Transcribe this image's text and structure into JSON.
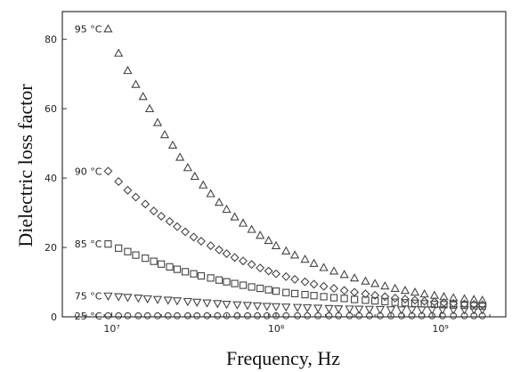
{
  "chart_data": {
    "type": "scatter",
    "title": "",
    "xlabel": "Frequency, Hz",
    "ylabel": "Dielectric loss factor",
    "xscale": "log",
    "xlim": [
      5000000,
      2500000000
    ],
    "ylim": [
      0,
      88
    ],
    "grid": false,
    "legend": "inline labels at left of each series",
    "x_ticks": [
      {
        "value": 10000000,
        "label": "10⁷"
      },
      {
        "value": 100000000,
        "label": "10⁸"
      },
      {
        "value": 1000000000,
        "label": "10⁹"
      }
    ],
    "y_ticks": [
      0,
      20,
      40,
      60,
      80
    ],
    "colors": {
      "marker": "#444444",
      "axis": "#333333"
    },
    "series": [
      {
        "name": "95 °C",
        "marker": "triangle",
        "x": [
          9500000,
          11000000,
          12500000,
          14000000,
          15500000,
          17000000,
          19000000,
          21000000,
          23500000,
          26000000,
          29000000,
          32000000,
          36000000,
          40000000,
          45000000,
          50000000,
          56000000,
          63000000,
          71000000,
          80000000,
          90000000,
          100000000,
          115000000,
          130000000,
          150000000,
          170000000,
          195000000,
          225000000,
          260000000,
          300000000,
          350000000,
          400000000,
          460000000,
          530000000,
          610000000,
          700000000,
          800000000,
          920000000,
          1050000000,
          1200000000,
          1400000000,
          1600000000,
          1800000000
        ],
        "y": [
          83,
          76,
          71,
          67,
          63.5,
          60,
          56,
          52.5,
          49.5,
          46,
          43,
          40.5,
          38,
          35.5,
          33,
          31,
          28.8,
          27,
          25.2,
          23.5,
          22,
          20.5,
          19,
          17.8,
          16.6,
          15.4,
          14.2,
          13.2,
          12.2,
          11.2,
          10.3,
          9.6,
          8.9,
          8.2,
          7.6,
          7.1,
          6.6,
          6.2,
          5.8,
          5.5,
          5.2,
          5,
          4.8
        ]
      },
      {
        "name": "90 °C",
        "marker": "diamond",
        "x": [
          9500000,
          11000000,
          12500000,
          14000000,
          16000000,
          18000000,
          20000000,
          22500000,
          25000000,
          28000000,
          31500000,
          35000000,
          40000000,
          45000000,
          50000000,
          56000000,
          63000000,
          71000000,
          80000000,
          90000000,
          100000000,
          115000000,
          130000000,
          150000000,
          170000000,
          195000000,
          225000000,
          260000000,
          300000000,
          350000000,
          400000000,
          460000000,
          530000000,
          610000000,
          700000000,
          800000000,
          920000000,
          1050000000,
          1200000000,
          1400000000,
          1600000000,
          1800000000
        ],
        "y": [
          42,
          39,
          36.5,
          34.5,
          32.5,
          30.5,
          29,
          27.5,
          26,
          24.5,
          23,
          21.8,
          20.5,
          19.3,
          18.2,
          17.1,
          16.1,
          15.1,
          14.1,
          13.2,
          12.4,
          11.6,
          10.8,
          10.1,
          9.4,
          8.8,
          8.2,
          7.6,
          7.1,
          6.6,
          6.2,
          5.8,
          5.4,
          5.1,
          4.8,
          4.5,
          4.3,
          4.1,
          3.9,
          3.7,
          3.6,
          3.5
        ]
      },
      {
        "name": "85 °C",
        "marker": "square",
        "x": [
          9500000,
          11000000,
          12500000,
          14000000,
          16000000,
          18000000,
          20000000,
          22500000,
          25000000,
          28000000,
          31500000,
          35000000,
          40000000,
          45000000,
          50000000,
          56000000,
          63000000,
          71000000,
          80000000,
          90000000,
          100000000,
          115000000,
          130000000,
          150000000,
          170000000,
          195000000,
          225000000,
          260000000,
          300000000,
          350000000,
          400000000,
          460000000,
          530000000,
          610000000,
          700000000,
          800000000,
          920000000,
          1050000000,
          1200000000,
          1400000000,
          1600000000,
          1800000000
        ],
        "y": [
          21,
          19.8,
          18.8,
          17.8,
          16.9,
          16,
          15.2,
          14.4,
          13.7,
          13,
          12.4,
          11.8,
          11.2,
          10.6,
          10.1,
          9.6,
          9.1,
          8.6,
          8.2,
          7.8,
          7.4,
          7,
          6.7,
          6.4,
          6.1,
          5.8,
          5.5,
          5.3,
          5,
          4.8,
          4.6,
          4.4,
          4.2,
          4.05,
          3.9,
          3.75,
          3.6,
          3.5,
          3.4,
          3.3,
          3.2,
          3.1
        ]
      },
      {
        "name": "75 °C",
        "marker": "triangle-down",
        "x": [
          9500000,
          11000000,
          12500000,
          14500000,
          16500000,
          19000000,
          22000000,
          25000000,
          29000000,
          33000000,
          38000000,
          44000000,
          50000000,
          58000000,
          67000000,
          77000000,
          88000000,
          100000000,
          115000000,
          135000000,
          155000000,
          180000000,
          210000000,
          240000000,
          280000000,
          320000000,
          370000000,
          430000000,
          500000000,
          580000000,
          670000000,
          770000000,
          890000000,
          1030000000,
          1200000000,
          1400000000,
          1600000000,
          1800000000
        ],
        "y": [
          6,
          5.8,
          5.6,
          5.4,
          5.2,
          5,
          4.8,
          4.6,
          4.4,
          4.2,
          4,
          3.8,
          3.6,
          3.45,
          3.3,
          3.15,
          3,
          2.9,
          2.8,
          2.7,
          2.6,
          2.5,
          2.4,
          2.3,
          2.25,
          2.2,
          2.15,
          2.1,
          2.05,
          2,
          2,
          2,
          2,
          2,
          2,
          2,
          2,
          2
        ]
      },
      {
        "name": "25 °C",
        "marker": "circle",
        "x": [
          9500000,
          11000000,
          12500000,
          14500000,
          16500000,
          19000000,
          22000000,
          25000000,
          29000000,
          33000000,
          38000000,
          44000000,
          50000000,
          58000000,
          67000000,
          77000000,
          88000000,
          100000000,
          115000000,
          135000000,
          155000000,
          180000000,
          210000000,
          240000000,
          280000000,
          320000000,
          370000000,
          430000000,
          500000000,
          580000000,
          670000000,
          770000000,
          890000000,
          1030000000,
          1200000000,
          1400000000,
          1600000000,
          1800000000
        ],
        "y": [
          0.3,
          0.3,
          0.3,
          0.3,
          0.3,
          0.3,
          0.3,
          0.3,
          0.3,
          0.3,
          0.3,
          0.3,
          0.3,
          0.3,
          0.3,
          0.3,
          0.3,
          0.3,
          0.3,
          0.3,
          0.3,
          0.3,
          0.3,
          0.3,
          0.3,
          0.3,
          0.3,
          0.3,
          0.3,
          0.3,
          0.3,
          0.3,
          0.3,
          0.3,
          0.3,
          0.3,
          0.3,
          0.3
        ]
      }
    ]
  }
}
